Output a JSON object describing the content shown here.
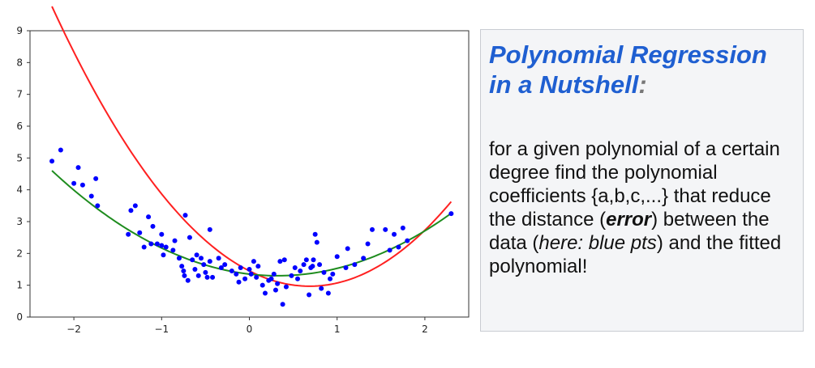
{
  "chart_data": {
    "type": "scatter",
    "xlim": [
      -2.5,
      2.5
    ],
    "ylim": [
      0,
      9
    ],
    "xticks": [
      -2,
      -1,
      0,
      1,
      2
    ],
    "xtick_labels": [
      "−2",
      "−1",
      "0",
      "1",
      "2"
    ],
    "yticks": [
      0,
      1,
      2,
      3,
      4,
      5,
      6,
      7,
      8,
      9
    ],
    "ytick_labels": [
      "0",
      "1",
      "2",
      "3",
      "4",
      "5",
      "6",
      "7",
      "8",
      "9"
    ],
    "grid": false,
    "series": [
      {
        "kind": "scatter",
        "color": "#0000ff",
        "points": [
          [
            -2.25,
            4.9
          ],
          [
            -2.15,
            5.25
          ],
          [
            -2.0,
            4.2
          ],
          [
            -1.95,
            4.7
          ],
          [
            -1.9,
            4.15
          ],
          [
            -1.8,
            3.8
          ],
          [
            -1.75,
            4.35
          ],
          [
            -1.73,
            3.5
          ],
          [
            -1.38,
            2.6
          ],
          [
            -1.35,
            3.35
          ],
          [
            -1.3,
            3.5
          ],
          [
            -1.25,
            2.65
          ],
          [
            -1.2,
            2.2
          ],
          [
            -1.15,
            3.15
          ],
          [
            -1.12,
            2.3
          ],
          [
            -1.1,
            2.85
          ],
          [
            -1.05,
            2.3
          ],
          [
            -1.0,
            2.25
          ],
          [
            -1.0,
            2.6
          ],
          [
            -0.98,
            1.95
          ],
          [
            -0.95,
            2.2
          ],
          [
            -0.87,
            2.1
          ],
          [
            -0.85,
            2.4
          ],
          [
            -0.8,
            1.85
          ],
          [
            -0.77,
            1.6
          ],
          [
            -0.75,
            1.45
          ],
          [
            -0.74,
            1.3
          ],
          [
            -0.73,
            3.2
          ],
          [
            -0.7,
            1.15
          ],
          [
            -0.68,
            2.5
          ],
          [
            -0.65,
            1.8
          ],
          [
            -0.62,
            1.5
          ],
          [
            -0.6,
            1.95
          ],
          [
            -0.58,
            1.3
          ],
          [
            -0.55,
            1.85
          ],
          [
            -0.52,
            1.65
          ],
          [
            -0.5,
            1.4
          ],
          [
            -0.48,
            1.25
          ],
          [
            -0.45,
            1.75
          ],
          [
            -0.45,
            2.75
          ],
          [
            -0.42,
            1.25
          ],
          [
            -0.35,
            1.85
          ],
          [
            -0.32,
            1.55
          ],
          [
            -0.28,
            1.65
          ],
          [
            -0.2,
            1.45
          ],
          [
            -0.15,
            1.35
          ],
          [
            -0.12,
            1.1
          ],
          [
            -0.1,
            1.55
          ],
          [
            -0.05,
            1.2
          ],
          [
            0.0,
            1.5
          ],
          [
            0.02,
            1.35
          ],
          [
            0.05,
            1.75
          ],
          [
            0.08,
            1.25
          ],
          [
            0.1,
            1.6
          ],
          [
            0.15,
            1.0
          ],
          [
            0.18,
            0.75
          ],
          [
            0.22,
            1.15
          ],
          [
            0.25,
            1.2
          ],
          [
            0.28,
            1.35
          ],
          [
            0.3,
            0.85
          ],
          [
            0.32,
            1.05
          ],
          [
            0.35,
            1.75
          ],
          [
            0.38,
            0.4
          ],
          [
            0.4,
            1.8
          ],
          [
            0.42,
            0.95
          ],
          [
            0.48,
            1.3
          ],
          [
            0.52,
            1.55
          ],
          [
            0.55,
            1.2
          ],
          [
            0.58,
            1.45
          ],
          [
            0.62,
            1.65
          ],
          [
            0.65,
            1.8
          ],
          [
            0.68,
            0.7
          ],
          [
            0.7,
            1.55
          ],
          [
            0.72,
            1.6
          ],
          [
            0.73,
            1.8
          ],
          [
            0.75,
            2.6
          ],
          [
            0.77,
            2.35
          ],
          [
            0.8,
            1.65
          ],
          [
            0.82,
            0.9
          ],
          [
            0.85,
            1.4
          ],
          [
            0.9,
            0.75
          ],
          [
            0.92,
            1.2
          ],
          [
            0.95,
            1.35
          ],
          [
            1.0,
            1.9
          ],
          [
            1.1,
            1.55
          ],
          [
            1.12,
            2.15
          ],
          [
            1.2,
            1.65
          ],
          [
            1.3,
            1.85
          ],
          [
            1.35,
            2.3
          ],
          [
            1.4,
            2.75
          ],
          [
            1.55,
            2.75
          ],
          [
            1.6,
            2.1
          ],
          [
            1.65,
            2.6
          ],
          [
            1.7,
            2.2
          ],
          [
            1.75,
            2.8
          ],
          [
            1.8,
            2.4
          ],
          [
            2.3,
            3.25
          ]
        ]
      },
      {
        "kind": "line",
        "color": "#ff2020",
        "coefficients": [
          1.45,
          -1.4,
          1.02
        ],
        "x_range": [
          -2.25,
          2.3
        ]
      },
      {
        "kind": "line",
        "color": "#1e8c1e",
        "coefficients": [
          1.35,
          -0.32,
          0.5
        ],
        "x_range": [
          -2.25,
          2.3
        ]
      }
    ]
  },
  "info": {
    "title_line1": "Polynomial Regression",
    "title_line2": "in a Nutshell",
    "title_colon": ":",
    "body_1": "for a given polynomial of a certain degree find the polynomial coefficients {a,b,c,...} that reduce the distance (",
    "body_bold": "error",
    "body_2": ") between the data (",
    "body_italic": "here: blue pts",
    "body_3": ") and the fitted polynomial!"
  }
}
